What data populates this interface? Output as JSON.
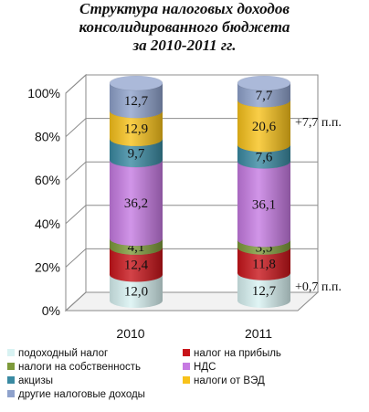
{
  "chart_data": {
    "type": "bar",
    "stacked": true,
    "three_d": true,
    "title_lines": [
      "Структура налоговых доходов",
      "консолидированного бюджета",
      "за 2010-2011 гг."
    ],
    "categories": [
      "2010",
      "2011"
    ],
    "y_ticks": [
      "0%",
      "20%",
      "40%",
      "60%",
      "80%",
      "100%"
    ],
    "ylim": [
      0,
      100
    ],
    "series": [
      {
        "name": "подоходный налог",
        "color": "#d8f2f2",
        "values": [
          12.0,
          12.7
        ],
        "labels": [
          "12,0",
          "12,7"
        ]
      },
      {
        "name": "налог на прибыль",
        "color": "#c8141a",
        "values": [
          12.4,
          11.8
        ],
        "labels": [
          "12,4",
          "11,8"
        ]
      },
      {
        "name": "налоги на собственность",
        "color": "#7d9a3a",
        "values": [
          4.1,
          3.5
        ],
        "labels": [
          "4,1",
          "3,5"
        ]
      },
      {
        "name": "НДС",
        "color": "#c67ae2",
        "values": [
          36.2,
          36.1
        ],
        "labels": [
          "36,2",
          "36,1"
        ]
      },
      {
        "name": "акцизы",
        "color": "#3a8aa2",
        "values": [
          9.7,
          7.6
        ],
        "labels": [
          "9,7",
          "7,6"
        ]
      },
      {
        "name": "налоги от ВЭД",
        "color": "#f8c21a",
        "values": [
          12.9,
          20.6
        ],
        "labels": [
          "12,9",
          "20,6"
        ]
      },
      {
        "name": "другие налоговые доходы",
        "color": "#8fa2cc",
        "values": [
          12.7,
          7.7
        ],
        "labels": [
          "12,7",
          "7,7"
        ]
      }
    ],
    "annotations": [
      {
        "text": "+7,7 п.п.",
        "category": "2011",
        "series": "налоги от ВЭД"
      },
      {
        "text": "+0,7 п.п.",
        "category": "2011",
        "series": "подоходный налог"
      }
    ],
    "grid": true,
    "legend_position": "bottom"
  }
}
